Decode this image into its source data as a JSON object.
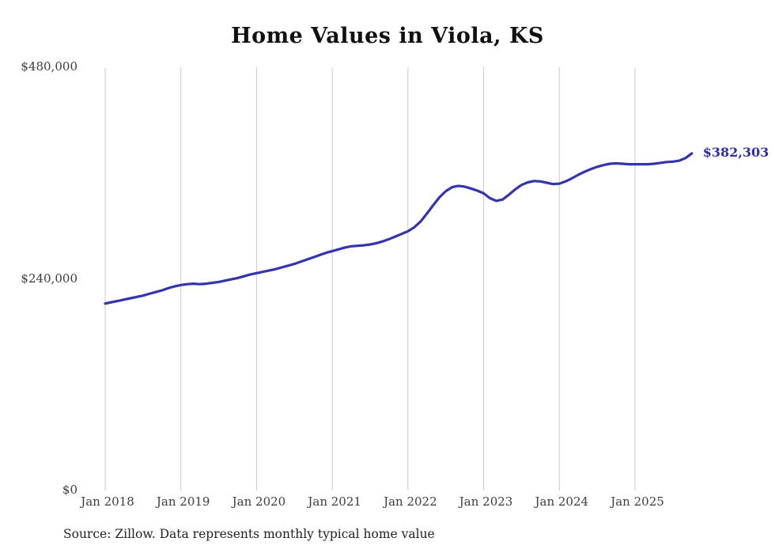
{
  "page": {
    "background": "#ffffff"
  },
  "chart_data": {
    "type": "line",
    "title": "Home Values in Viola, KS",
    "series_name": "Monthly typical home value",
    "legend": "none",
    "grid": "vertical-only",
    "line_color": "#3533af",
    "grid_color": "#cccccc",
    "ylim": [
      0,
      480000
    ],
    "y_ticks": [
      {
        "label": "$480,000",
        "value": 480000
      },
      {
        "label": "$240,000",
        "value": 240000
      },
      {
        "label": "$0",
        "value": 0
      }
    ],
    "x_ticks": [
      "Jan 2018",
      "Jan 2019",
      "Jan 2020",
      "Jan 2021",
      "Jan 2022",
      "Jan 2023",
      "Jan 2024",
      "Jan 2025"
    ],
    "end_label": "$382,303",
    "x": [
      "2018-01",
      "2018-02",
      "2018-03",
      "2018-04",
      "2018-05",
      "2018-06",
      "2018-07",
      "2018-08",
      "2018-09",
      "2018-10",
      "2018-11",
      "2018-12",
      "2019-01",
      "2019-02",
      "2019-03",
      "2019-04",
      "2019-05",
      "2019-06",
      "2019-07",
      "2019-08",
      "2019-09",
      "2019-10",
      "2019-11",
      "2019-12",
      "2020-01",
      "2020-02",
      "2020-03",
      "2020-04",
      "2020-05",
      "2020-06",
      "2020-07",
      "2020-08",
      "2020-09",
      "2020-10",
      "2020-11",
      "2020-12",
      "2021-01",
      "2021-02",
      "2021-03",
      "2021-04",
      "2021-05",
      "2021-06",
      "2021-07",
      "2021-08",
      "2021-09",
      "2021-10",
      "2021-11",
      "2021-12",
      "2022-01",
      "2022-02",
      "2022-03",
      "2022-04",
      "2022-05",
      "2022-06",
      "2022-07",
      "2022-08",
      "2022-09",
      "2022-10",
      "2022-11",
      "2022-12",
      "2023-01",
      "2023-02",
      "2023-03",
      "2023-04",
      "2023-05",
      "2023-06",
      "2023-07",
      "2023-08",
      "2023-09",
      "2023-10",
      "2023-11",
      "2023-12",
      "2024-01",
      "2024-02",
      "2024-03",
      "2024-04",
      "2024-05",
      "2024-06",
      "2024-07",
      "2024-08",
      "2024-09",
      "2024-10",
      "2024-11",
      "2024-12",
      "2025-01",
      "2025-02",
      "2025-03",
      "2025-04",
      "2025-05",
      "2025-06",
      "2025-07",
      "2025-08",
      "2025-09",
      "2025-10"
    ],
    "values": [
      212000,
      213500,
      215000,
      216500,
      218000,
      219500,
      221000,
      223000,
      225000,
      227000,
      229500,
      231500,
      233000,
      234000,
      234500,
      234000,
      234500,
      235500,
      236500,
      238000,
      239500,
      241000,
      243000,
      245000,
      246500,
      248000,
      249500,
      251000,
      253000,
      255000,
      257000,
      259500,
      262000,
      264500,
      267000,
      269500,
      271500,
      273500,
      275500,
      277000,
      277500,
      278000,
      279000,
      280500,
      282500,
      285000,
      288000,
      291000,
      294000,
      298500,
      305000,
      314000,
      323500,
      332500,
      339500,
      344000,
      345500,
      344500,
      342500,
      340000,
      337000,
      331500,
      328500,
      330000,
      335500,
      341500,
      346500,
      349500,
      351000,
      350500,
      349000,
      347500,
      348000,
      350500,
      354000,
      358000,
      361500,
      364500,
      367000,
      369000,
      370500,
      371000,
      370500,
      370000,
      370000,
      370000,
      370000,
      370500,
      371500,
      372500,
      373000,
      374000,
      377000,
      382303
    ]
  },
  "footer": {
    "source_note": "Source: Zillow. Data represents monthly typical home value"
  }
}
